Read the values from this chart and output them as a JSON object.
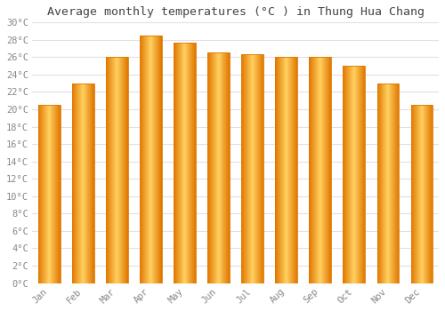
{
  "months": [
    "Jan",
    "Feb",
    "Mar",
    "Apr",
    "May",
    "Jun",
    "Jul",
    "Aug",
    "Sep",
    "Oct",
    "Nov",
    "Dec"
  ],
  "values": [
    20.5,
    23.0,
    26.0,
    28.5,
    27.7,
    26.5,
    26.3,
    26.0,
    26.0,
    25.0,
    23.0,
    20.5
  ],
  "bar_color_edge": "#E07800",
  "bar_color_center": "#FFD060",
  "bar_color_fill": "#FFA820",
  "title": "Average monthly temperatures (°C ) in Thung Hua Chang",
  "ylim": [
    0,
    30
  ],
  "ytick_step": 2,
  "background_color": "#ffffff",
  "plot_bg_color": "#ffffff",
  "grid_color": "#e0e0e8",
  "title_fontsize": 9.5,
  "tick_fontsize": 7.5,
  "tick_label_color": "#888888",
  "bar_width": 0.65
}
